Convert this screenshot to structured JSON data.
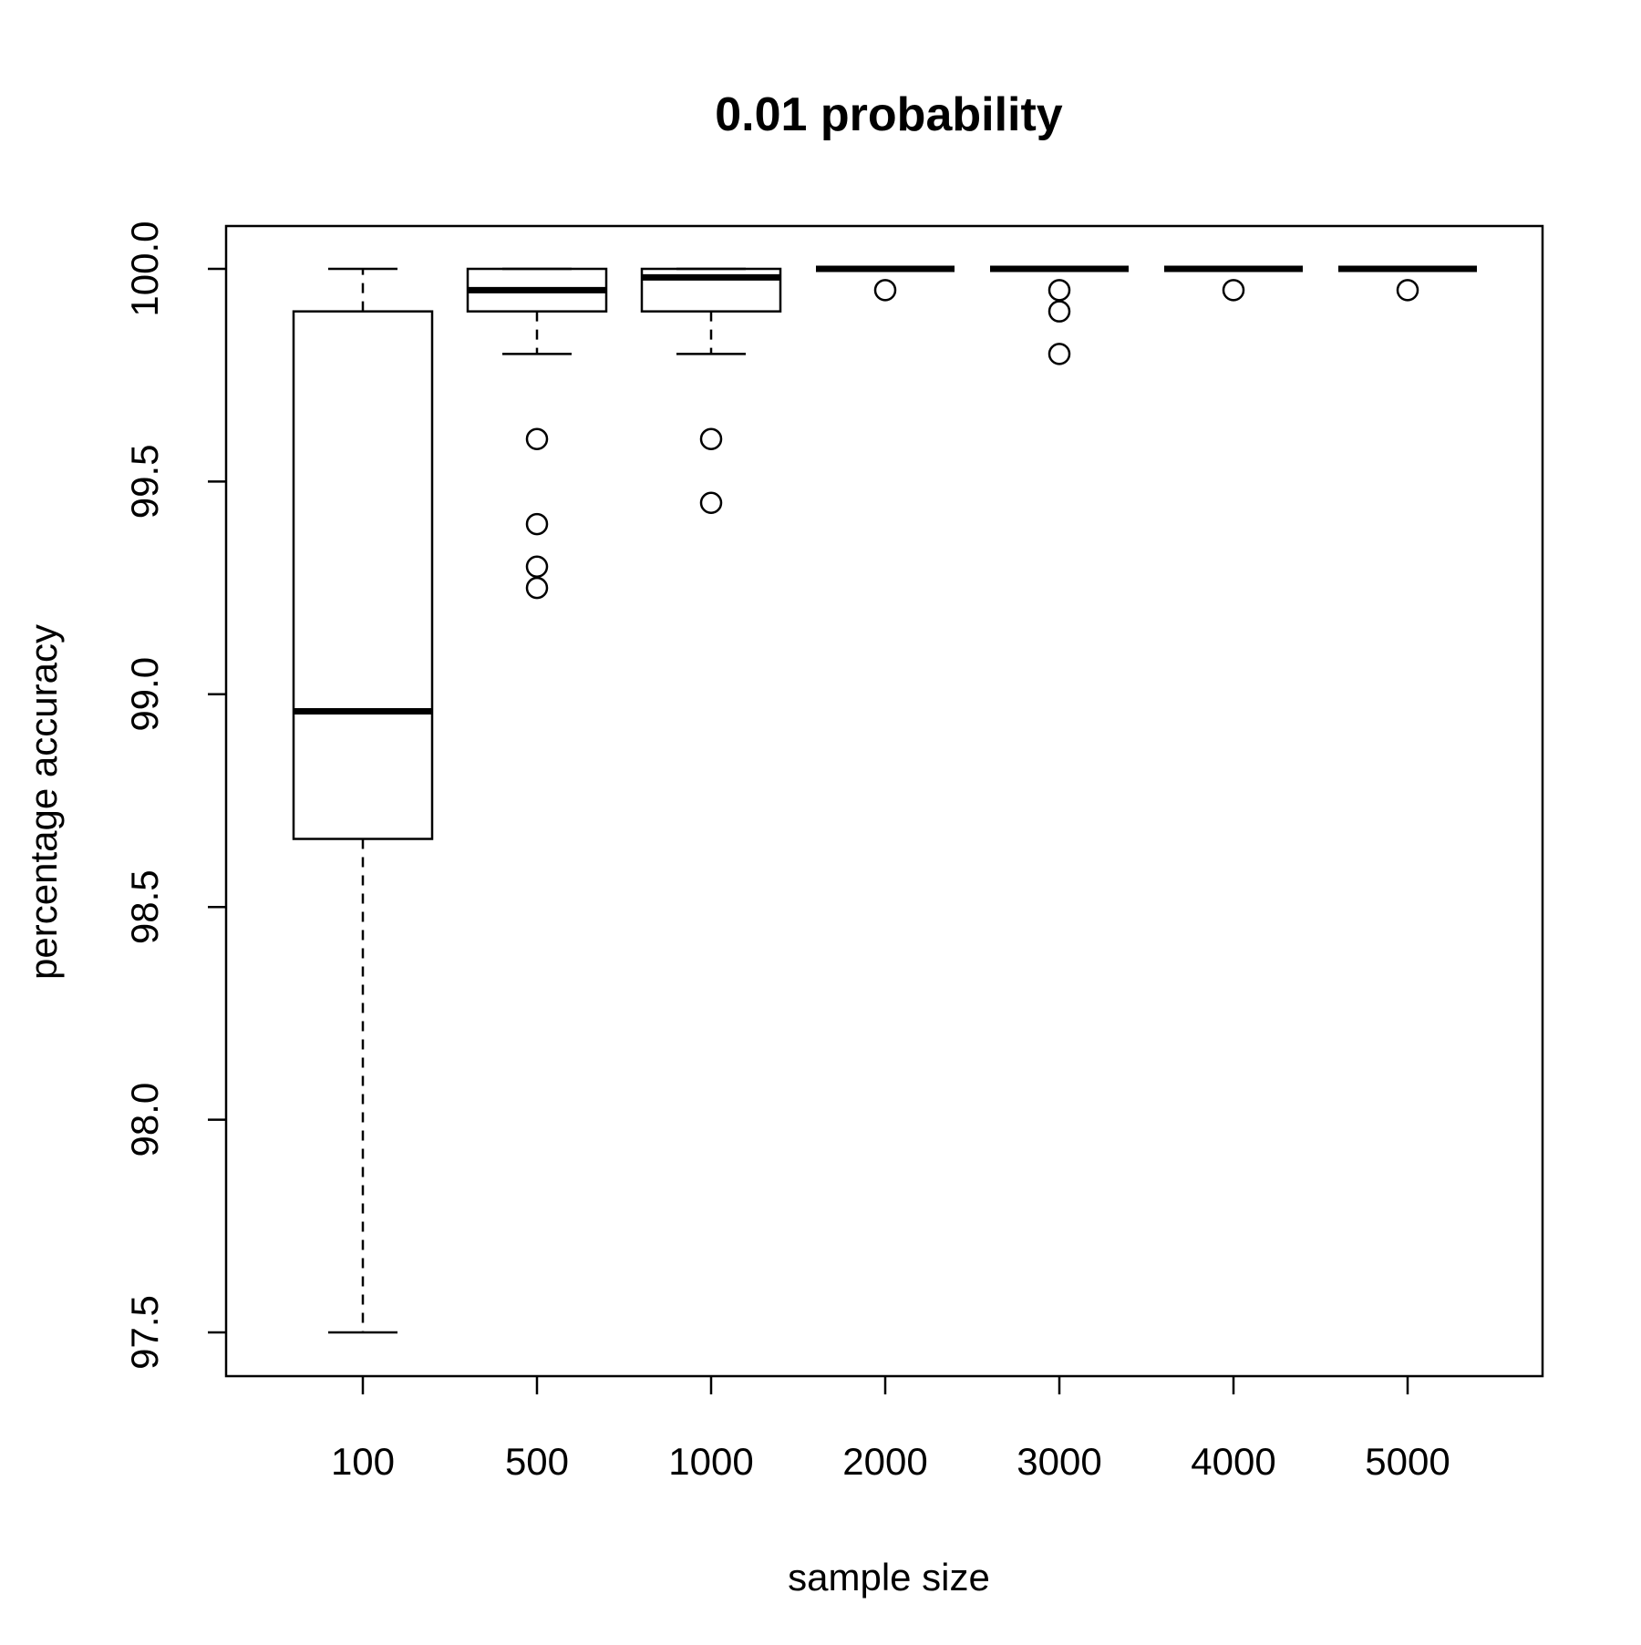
{
  "chart_data": {
    "type": "boxplot",
    "title": "0.01 probability",
    "xlabel": "sample size",
    "ylabel": "percentage accuracy",
    "categories": [
      "100",
      "500",
      "1000",
      "2000",
      "3000",
      "4000",
      "5000"
    ],
    "ylim": [
      97.4,
      100.1
    ],
    "yticks": [
      97.5,
      98.0,
      98.5,
      99.0,
      99.5,
      100.0
    ],
    "ytick_labels": [
      "97.5",
      "98.0",
      "98.5",
      "99.0",
      "99.5",
      "100.0"
    ],
    "grid": false,
    "legend": "none",
    "boxes": [
      {
        "category": "100",
        "whisker_low": 97.5,
        "q1": 98.66,
        "median": 98.96,
        "q3": 99.9,
        "whisker_high": 100.0,
        "outliers": []
      },
      {
        "category": "500",
        "whisker_low": 99.8,
        "q1": 99.9,
        "median": 99.95,
        "q3": 100.0,
        "whisker_high": 100.0,
        "outliers": [
          99.6,
          99.4,
          99.3,
          99.25
        ]
      },
      {
        "category": "1000",
        "whisker_low": 99.8,
        "q1": 99.9,
        "median": 99.98,
        "q3": 100.0,
        "whisker_high": 100.0,
        "outliers": [
          99.6,
          99.45
        ]
      },
      {
        "category": "2000",
        "whisker_low": 100.0,
        "q1": 100.0,
        "median": 100.0,
        "q3": 100.0,
        "whisker_high": 100.0,
        "outliers": [
          99.95
        ]
      },
      {
        "category": "3000",
        "whisker_low": 100.0,
        "q1": 100.0,
        "median": 100.0,
        "q3": 100.0,
        "whisker_high": 100.0,
        "outliers": [
          99.95,
          99.9,
          99.8
        ]
      },
      {
        "category": "4000",
        "whisker_low": 100.0,
        "q1": 100.0,
        "median": 100.0,
        "q3": 100.0,
        "whisker_high": 100.0,
        "outliers": [
          99.95
        ]
      },
      {
        "category": "5000",
        "whisker_low": 100.0,
        "q1": 100.0,
        "median": 100.0,
        "q3": 100.0,
        "whisker_high": 100.0,
        "outliers": [
          99.95
        ]
      }
    ]
  }
}
